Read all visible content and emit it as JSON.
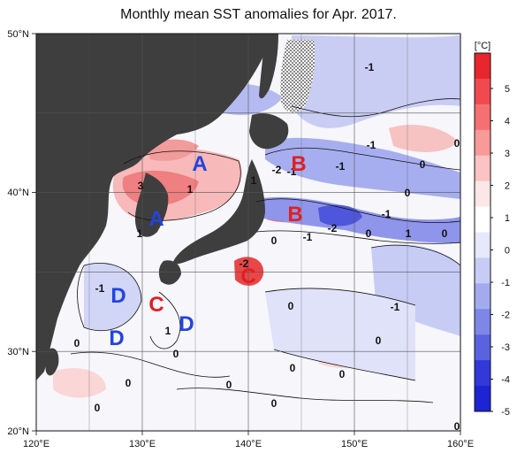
{
  "title": "Monthly mean SST anomalies for Apr. 2017.",
  "lat_labels": [
    "50°N",
    "40°N",
    "30°N",
    "20°N"
  ],
  "lon_labels": [
    "120°E",
    "130°E",
    "140°E",
    "150°E",
    "160°E"
  ],
  "colorbar": {
    "unit": "[°C]",
    "ticks": [
      "5",
      "4",
      "3",
      "2",
      "1",
      "0",
      "-1",
      "-2",
      "-3",
      "-4",
      "-5"
    ],
    "colors": [
      "#e8262c",
      "#f04a4e",
      "#f57073",
      "#f8999a",
      "#fbc3c3",
      "#fde6e6",
      "#ffffff",
      "#e6e8fb",
      "#c7ccf5",
      "#a3aaee",
      "#7e86e6",
      "#5a62df",
      "#3239d8",
      "#1d24d3"
    ]
  },
  "region_labels": [
    {
      "text": "A",
      "color": "#2244dd"
    },
    {
      "text": "A",
      "color": "#2244dd"
    },
    {
      "text": "B",
      "color": "#e02020"
    },
    {
      "text": "B",
      "color": "#e02020"
    },
    {
      "text": "C",
      "color": "#e02020"
    },
    {
      "text": "C",
      "color": "#e02020"
    },
    {
      "text": "D",
      "color": "#2244dd"
    },
    {
      "text": "D",
      "color": "#2244dd"
    },
    {
      "text": "D",
      "color": "#2244dd"
    }
  ],
  "contour_labels": [
    "-1",
    "0",
    "-1",
    "-1",
    "0",
    "-2",
    "-1",
    "1",
    "3",
    "1",
    "1",
    "0",
    "-1",
    "-2",
    "0",
    "-1",
    "-2",
    "0",
    "1",
    "-1",
    "0",
    "-1",
    "0",
    "1",
    "0",
    "0",
    "0",
    "0",
    "0",
    "0",
    "0",
    "0",
    "0",
    "0"
  ]
}
